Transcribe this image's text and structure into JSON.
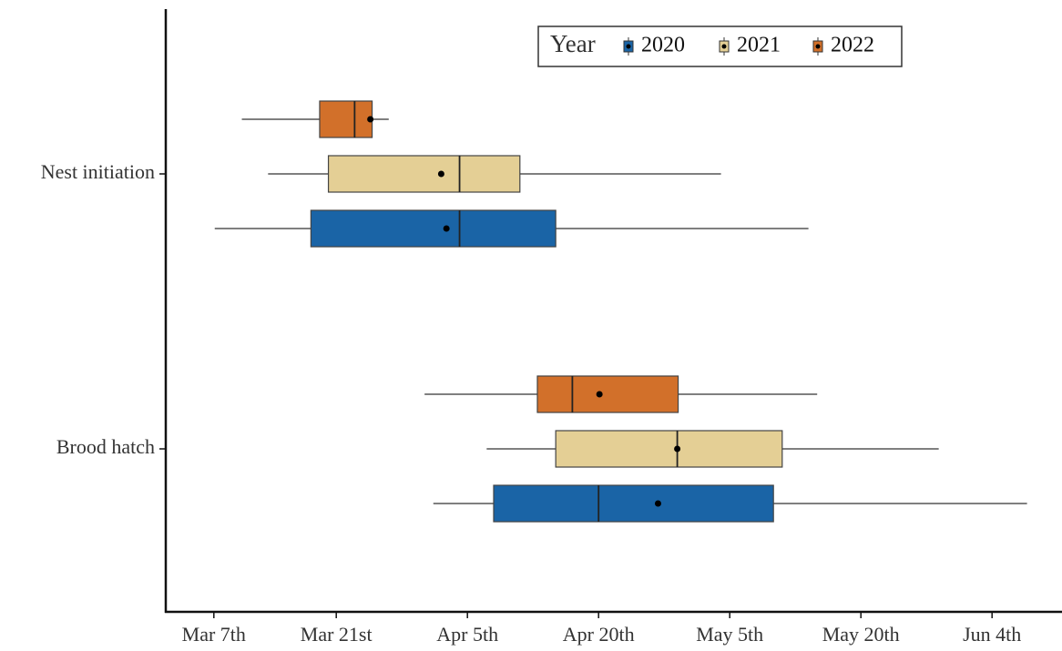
{
  "chart_data": {
    "type": "boxplot",
    "orientation": "horizontal",
    "categories": [
      "Nest initiation",
      "Brood hatch"
    ],
    "legend_title": "Year",
    "legend_position": "top-right",
    "xlim": [
      60.5,
      163
    ],
    "xticks": [
      {
        "value": 66,
        "label": "Mar 7th"
      },
      {
        "value": 80,
        "label": "Mar 21st"
      },
      {
        "value": 95,
        "label": "Apr 5th"
      },
      {
        "value": 110,
        "label": "Apr 20th"
      },
      {
        "value": 125,
        "label": "May 5th"
      },
      {
        "value": 140,
        "label": "May 20th"
      },
      {
        "value": 155,
        "label": "Jun 4th"
      }
    ],
    "series": [
      {
        "name": "2020",
        "color": "#1a64a6",
        "values": [
          {
            "min": 66.1,
            "q1": 77.1,
            "median": 94.1,
            "q3": 105.1,
            "max": 134.0,
            "mean": 92.6
          },
          {
            "min": 91.1,
            "q1": 98.0,
            "median": 110.0,
            "q3": 130.0,
            "max": 159.0,
            "mean": 116.8
          }
        ]
      },
      {
        "name": "2021",
        "color": "#e4cf95",
        "values": [
          {
            "min": 72.2,
            "q1": 79.1,
            "median": 94.1,
            "q3": 101.0,
            "max": 124.0,
            "mean": 92.0
          },
          {
            "min": 97.2,
            "q1": 105.1,
            "median": 119.0,
            "q3": 131.0,
            "max": 148.9,
            "mean": 119.0
          }
        ]
      },
      {
        "name": "2022",
        "color": "#d2702a",
        "values": [
          {
            "min": 69.2,
            "q1": 78.1,
            "median": 82.1,
            "q3": 84.1,
            "max": 86.0,
            "mean": 83.9
          },
          {
            "min": 90.1,
            "q1": 103.0,
            "median": 107.0,
            "q3": 119.1,
            "max": 135.0,
            "mean": 110.1
          }
        ]
      }
    ]
  }
}
